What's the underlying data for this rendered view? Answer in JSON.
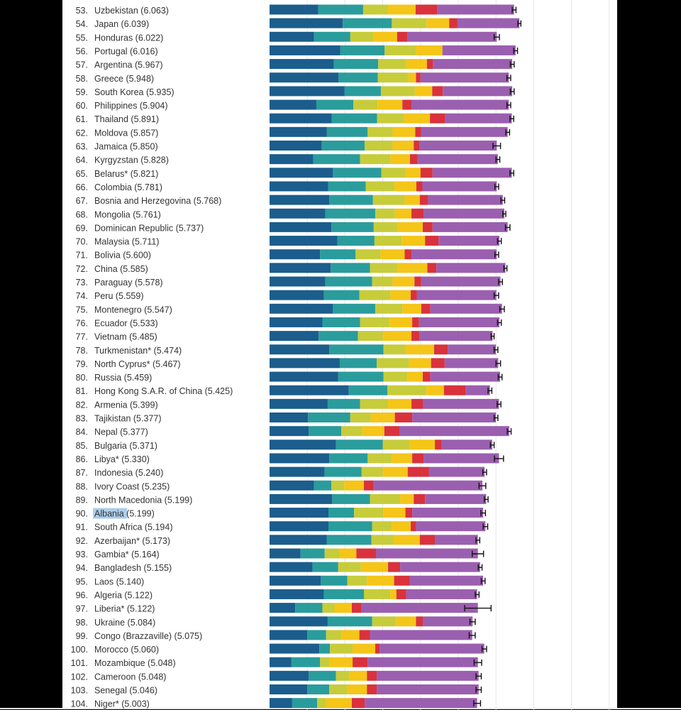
{
  "chart_data": {
    "type": "bar",
    "stacked": true,
    "orientation": "horizontal",
    "error_bars": true,
    "grid": true,
    "highlighted_country": "Albania",
    "segment_colors": [
      "#1b5d8c",
      "#2a9c9c",
      "#c7cc3a",
      "#f5c518",
      "#d9323c",
      "#9b5fb0"
    ],
    "rows": [
      {
        "rank": "53.",
        "name": "Uzbekistan",
        "score": "6.063",
        "segs": [
          1.29,
          1.19,
          0.66,
          0.73,
          0.58,
          2.03
        ],
        "err": 0.05
      },
      {
        "rank": "54.",
        "name": "Japan",
        "score": "6.039",
        "segs": [
          1.94,
          1.3,
          0.92,
          0.6,
          0.22,
          1.64
        ],
        "err": 0.04
      },
      {
        "rank": "55.",
        "name": "Honduras",
        "score": "6.022",
        "segs": [
          1.18,
          0.96,
          0.62,
          0.62,
          0.28,
          2.36
        ],
        "err": 0.07
      },
      {
        "rank": "56.",
        "name": "Portugal",
        "score": "6.016",
        "segs": [
          1.87,
          1.18,
          0.83,
          0.7,
          0.0,
          1.94
        ],
        "err": 0.05
      },
      {
        "rank": "57.",
        "name": "Argentina",
        "score": "5.967",
        "segs": [
          1.7,
          1.18,
          0.74,
          0.55,
          0.16,
          2.1
        ],
        "err": 0.05
      },
      {
        "rank": "58.",
        "name": "Greece",
        "score": "5.948",
        "segs": [
          1.83,
          1.04,
          0.81,
          0.2,
          0.12,
          2.34
        ],
        "err": 0.05
      },
      {
        "rank": "59.",
        "name": "South Korea",
        "score": "5.935",
        "segs": [
          1.99,
          0.96,
          0.9,
          0.46,
          0.28,
          1.84
        ],
        "err": 0.05
      },
      {
        "rank": "60.",
        "name": "Philippines",
        "score": "5.904",
        "segs": [
          1.24,
          0.98,
          0.64,
          0.66,
          0.24,
          2.58
        ],
        "err": 0.05
      },
      {
        "rank": "61.",
        "name": "Thailand",
        "score": "5.891",
        "segs": [
          1.65,
          1.2,
          0.72,
          0.68,
          0.4,
          1.77
        ],
        "err": 0.05
      },
      {
        "rank": "62.",
        "name": "Moldova",
        "score": "5.857",
        "segs": [
          1.52,
          1.08,
          0.66,
          0.6,
          0.16,
          2.29
        ],
        "err": 0.05
      },
      {
        "rank": "63.",
        "name": "Jamaica",
        "score": "5.850",
        "segs": [
          1.38,
          1.14,
          0.74,
          0.56,
          0.16,
          2.04
        ],
        "err": 0.1
      },
      {
        "rank": "64.",
        "name": "Kyrgyzstan",
        "score": "5.828",
        "segs": [
          1.16,
          1.24,
          0.8,
          0.52,
          0.2,
          2.13
        ],
        "err": 0.05
      },
      {
        "rank": "65.",
        "name": "Belarus*",
        "score": "5.821",
        "segs": [
          1.68,
          1.28,
          0.64,
          0.4,
          0.32,
          2.1
        ],
        "err": 0.05
      },
      {
        "rank": "66.",
        "name": "Colombia",
        "score": "5.781",
        "segs": [
          1.55,
          1.0,
          0.76,
          0.58,
          0.16,
          1.97
        ],
        "err": 0.05
      },
      {
        "rank": "67.",
        "name": "Bosnia and Herzegovina",
        "score": "5.768",
        "segs": [
          1.58,
          1.16,
          0.84,
          0.4,
          0.22,
          1.98
        ],
        "err": 0.05
      },
      {
        "rank": "68.",
        "name": "Mongolia",
        "score": "5.761",
        "segs": [
          1.48,
          1.32,
          0.52,
          0.44,
          0.32,
          2.14
        ],
        "err": 0.04
      },
      {
        "rank": "69.",
        "name": "Dominican Republic",
        "score": "5.737",
        "segs": [
          1.64,
          1.12,
          0.64,
          0.66,
          0.26,
          1.99
        ],
        "err": 0.06
      },
      {
        "rank": "70.",
        "name": "Malaysia",
        "score": "5.711",
        "segs": [
          1.8,
          0.98,
          0.72,
          0.62,
          0.36,
          1.61
        ],
        "err": 0.05
      },
      {
        "rank": "71.",
        "name": "Bolivia",
        "score": "5.600",
        "segs": [
          1.34,
          0.94,
          0.66,
          0.64,
          0.18,
          2.26
        ],
        "err": 0.05
      },
      {
        "rank": "72.",
        "name": "China",
        "score": "5.585",
        "segs": [
          1.62,
          1.04,
          0.74,
          0.78,
          0.24,
          1.83
        ],
        "err": 0.04
      },
      {
        "rank": "73.",
        "name": "Paraguay",
        "score": "5.578",
        "segs": [
          1.48,
          1.24,
          0.54,
          0.58,
          0.18,
          2.1
        ],
        "err": 0.05
      },
      {
        "rank": "74.",
        "name": "Peru",
        "score": "5.559",
        "segs": [
          1.44,
          0.94,
          0.82,
          0.54,
          0.16,
          2.11
        ],
        "err": 0.06
      },
      {
        "rank": "75.",
        "name": "Montenegro",
        "score": "5.547",
        "segs": [
          1.68,
          1.12,
          0.72,
          0.5,
          0.24,
          1.9
        ],
        "err": 0.06
      },
      {
        "rank": "76.",
        "name": "Ecuador",
        "score": "5.533",
        "segs": [
          1.4,
          1.0,
          0.78,
          0.6,
          0.18,
          2.13
        ],
        "err": 0.05
      },
      {
        "rank": "77.",
        "name": "Vietnam",
        "score": "5.485",
        "segs": [
          1.3,
          1.04,
          0.66,
          0.76,
          0.22,
          1.93
        ],
        "err": 0.04
      },
      {
        "rank": "78.",
        "name": "Turkmenistan*",
        "score": "5.474",
        "segs": [
          1.58,
          1.44,
          0.58,
          0.76,
          0.36,
          1.28
        ],
        "err": 0.05
      },
      {
        "rank": "79.",
        "name": "North Cyprus*",
        "score": "5.467",
        "segs": [
          1.86,
          0.98,
          0.86,
          0.58,
          0.36,
          1.42
        ],
        "err": 0.06
      },
      {
        "rank": "80.",
        "name": "Russia",
        "score": "5.459",
        "segs": [
          1.82,
          1.2,
          0.64,
          0.4,
          0.2,
          1.85
        ],
        "err": 0.05
      },
      {
        "rank": "81.",
        "name": "Hong Kong S.A.R. of China",
        "score": "5.425",
        "segs": [
          2.1,
          1.02,
          1.04,
          0.46,
          0.58,
          0.64
        ],
        "err": 0.05
      },
      {
        "rank": "82.",
        "name": "Armenia",
        "score": "5.399",
        "segs": [
          1.54,
          0.86,
          0.74,
          0.62,
          0.3,
          2.02
        ],
        "err": 0.05
      },
      {
        "rank": "83.",
        "name": "Tajikistan",
        "score": "5.377",
        "segs": [
          1.02,
          1.12,
          0.54,
          0.64,
          0.46,
          2.22
        ],
        "err": 0.05
      },
      {
        "rank": "84.",
        "name": "Nepal",
        "score": "5.377",
        "segs": [
          1.04,
          0.86,
          0.56,
          0.58,
          0.4,
          2.91
        ],
        "err": 0.05
      },
      {
        "rank": "85.",
        "name": "Bulgaria",
        "score": "5.371",
        "segs": [
          1.76,
          1.24,
          0.72,
          0.66,
          0.18,
          1.34
        ],
        "err": 0.05
      },
      {
        "rank": "86.",
        "name": "Libya*",
        "score": "5.330",
        "segs": [
          1.58,
          1.02,
          0.64,
          0.54,
          0.3,
          2.0
        ],
        "err": 0.12
      },
      {
        "rank": "87.",
        "name": "Indonesia",
        "score": "5.240",
        "segs": [
          1.46,
          0.98,
          0.56,
          0.66,
          0.56,
          1.48
        ],
        "err": 0.05
      },
      {
        "rank": "88.",
        "name": "Ivory Coast",
        "score": "5.235",
        "segs": [
          1.18,
          0.46,
          0.34,
          0.52,
          0.26,
          2.88
        ],
        "err": 0.09
      },
      {
        "rank": "89.",
        "name": "North Macedonia",
        "score": "5.199",
        "segs": [
          1.66,
          1.0,
          0.8,
          0.36,
          0.3,
          1.62
        ],
        "err": 0.05
      },
      {
        "rank": "90.",
        "name": "Albania",
        "score": "5.199",
        "segs": [
          1.56,
          0.68,
          0.78,
          0.58,
          0.18,
          1.88
        ],
        "err": 0.06
      },
      {
        "rank": "91.",
        "name": "South Africa",
        "score": "5.194",
        "segs": [
          1.56,
          1.16,
          0.52,
          0.5,
          0.14,
          1.84
        ],
        "err": 0.06
      },
      {
        "rank": "92.",
        "name": "Azerbaijan*",
        "score": "5.173",
        "segs": [
          1.52,
          1.18,
          0.6,
          0.68,
          0.4,
          1.14
        ],
        "err": 0.05
      },
      {
        "rank": "93.",
        "name": "Gambia*",
        "score": "5.164",
        "segs": [
          0.82,
          0.64,
          0.4,
          0.44,
          0.52,
          2.7
        ],
        "err": 0.15
      },
      {
        "rank": "94.",
        "name": "Bangladesh",
        "score": "5.155",
        "segs": [
          1.14,
          0.68,
          0.6,
          0.72,
          0.32,
          2.12
        ],
        "err": 0.05
      },
      {
        "rank": "95.",
        "name": "Laos",
        "score": "5.140",
        "segs": [
          1.36,
          0.7,
          0.52,
          0.72,
          0.42,
          1.94
        ],
        "err": 0.05
      },
      {
        "rank": "96.",
        "name": "Algeria",
        "score": "5.122",
        "segs": [
          1.44,
          1.06,
          0.7,
          0.16,
          0.26,
          1.88
        ],
        "err": 0.05
      },
      {
        "rank": "97.",
        "name": "Liberia*",
        "score": "5.122",
        "segs": [
          0.68,
          0.72,
          0.32,
          0.46,
          0.26,
          3.08
        ],
        "err": 0.35
      },
      {
        "rank": "98.",
        "name": "Ukraine",
        "score": "5.084",
        "segs": [
          1.54,
          1.18,
          0.64,
          0.52,
          0.18,
          1.32
        ],
        "err": 0.07
      },
      {
        "rank": "99.",
        "name": "Congo (Brazzaville)",
        "score": "5.075",
        "segs": [
          1.0,
          0.5,
          0.4,
          0.48,
          0.28,
          2.71
        ],
        "err": 0.08
      },
      {
        "rank": "100.",
        "name": "Morocco",
        "score": "5.060",
        "segs": [
          1.32,
          0.28,
          0.6,
          0.6,
          0.12,
          2.77
        ],
        "err": 0.06
      },
      {
        "rank": "101.",
        "name": "Mozambique",
        "score": "5.048",
        "segs": [
          0.58,
          0.76,
          0.24,
          0.62,
          0.4,
          2.92
        ],
        "err": 0.1
      },
      {
        "rank": "102.",
        "name": "Cameroon",
        "score": "5.048",
        "segs": [
          1.04,
          0.72,
          0.36,
          0.46,
          0.26,
          2.7
        ],
        "err": 0.07
      },
      {
        "rank": "103.",
        "name": "Senegal",
        "score": "5.046",
        "segs": [
          1.0,
          0.58,
          0.48,
          0.52,
          0.26,
          2.7
        ],
        "err": 0.07
      },
      {
        "rank": "104.",
        "name": "Niger*",
        "score": "5.003",
        "segs": [
          0.6,
          0.66,
          0.24,
          0.68,
          0.34,
          2.98
        ],
        "err": 0.09
      }
    ]
  }
}
